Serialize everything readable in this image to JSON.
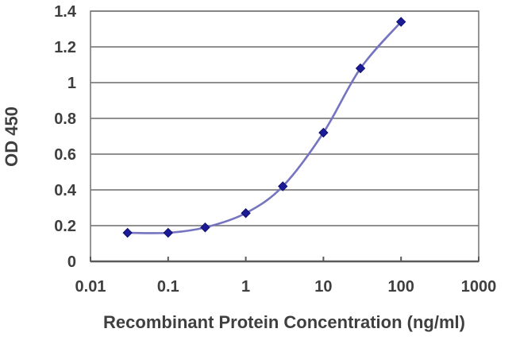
{
  "figure": {
    "background": "#ffffff"
  },
  "chart_data": {
    "type": "line",
    "title": "",
    "xlabel": "Recombinant Protein Concentration (ng/ml)",
    "ylabel": "OD 450",
    "x_scale": "log",
    "y_scale": "linear",
    "xlim": [
      0.01,
      1000
    ],
    "ylim": [
      0,
      1.4
    ],
    "x_ticks": [
      0.01,
      0.1,
      1,
      10,
      100,
      1000
    ],
    "x_tick_labels": [
      "0.01",
      "0.1",
      "1",
      "10",
      "100",
      "1000"
    ],
    "y_ticks": [
      0,
      0.2,
      0.4,
      0.6,
      0.8,
      1,
      1.2,
      1.4
    ],
    "y_tick_labels": [
      "0",
      "0.2",
      "0.4",
      "0.6",
      "0.8",
      "1",
      "1.2",
      "1.4"
    ],
    "grid": "horizontal",
    "legend": "none",
    "series": [
      {
        "name": "OD 450",
        "x": [
          0.03,
          0.1,
          0.3,
          1,
          3,
          10,
          30,
          100
        ],
        "y": [
          0.16,
          0.16,
          0.19,
          0.27,
          0.42,
          0.72,
          1.08,
          1.34
        ],
        "marker": "diamond",
        "line_style": "smooth"
      }
    ],
    "colors": {
      "line": "#7474c0",
      "marker_fill": "#1b1b97",
      "marker_stroke": "#12126e",
      "grid": "#6b6b6b",
      "axis": "#5a5a5a",
      "border": "#7a7a7a",
      "text": "#3f3f3f"
    }
  }
}
